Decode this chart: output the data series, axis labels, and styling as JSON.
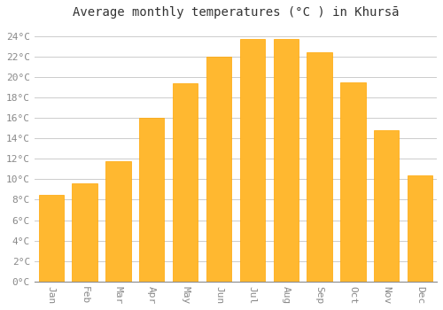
{
  "title": "Average monthly temperatures (°C ) in Khursā",
  "months": [
    "Jan",
    "Feb",
    "Mar",
    "Apr",
    "May",
    "Jun",
    "Jul",
    "Aug",
    "Sep",
    "Oct",
    "Nov",
    "Dec"
  ],
  "values": [
    8.5,
    9.6,
    11.8,
    16.0,
    19.4,
    22.0,
    23.7,
    23.7,
    22.4,
    19.5,
    14.8,
    10.4
  ],
  "bar_color_inner": "#FFB830",
  "bar_color_edge": "#FFA500",
  "background_color": "#FFFFFF",
  "grid_color": "#CCCCCC",
  "ylim": [
    0,
    25
  ],
  "ytick_step": 2,
  "title_fontsize": 10,
  "tick_fontsize": 8,
  "tick_color": "#888888",
  "title_color": "#333333",
  "font_family": "monospace",
  "bar_width": 0.75
}
